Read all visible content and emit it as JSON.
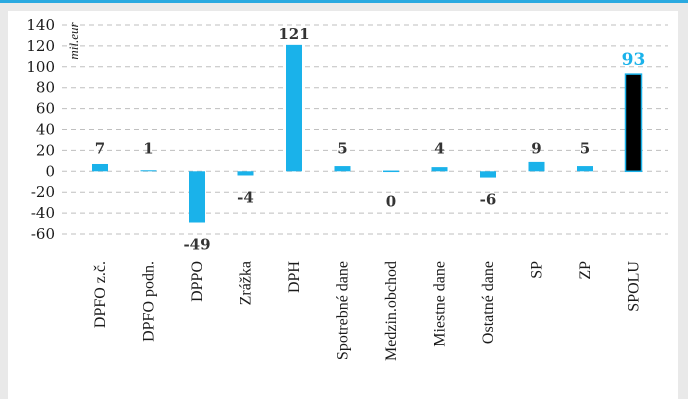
{
  "chart_data": {
    "type": "bar",
    "ylabel": "mil.eur",
    "ylim": [
      -60,
      140
    ],
    "yticks": [
      140,
      120,
      100,
      80,
      60,
      40,
      20,
      0,
      -20,
      -40,
      -60
    ],
    "grid": true,
    "categories": [
      "DPFO z.č.",
      "DPFO podn.",
      "DPPO",
      "Zrážka",
      "DPH",
      "Spotrebné dane",
      "Medzin.obchod",
      "Miestne dane",
      "Ostatné dane",
      "SP",
      "ZP",
      "SPOLU"
    ],
    "values": [
      7,
      1,
      -49,
      -4,
      121,
      5,
      0,
      4,
      -6,
      9,
      5,
      93
    ],
    "data_labels": [
      "7",
      "1",
      "-49",
      "-4",
      "121",
      "5",
      "0",
      "4",
      "-6",
      "9",
      "5",
      "93"
    ],
    "colors": {
      "bar": "#1ab2ea",
      "total_bar": "#000000",
      "total_label": "#1ab2ea",
      "label": "#333333",
      "grid": "#bfbfbf",
      "frame_border": "#29a9e0",
      "frame_bg": "#e9e9e9"
    }
  }
}
